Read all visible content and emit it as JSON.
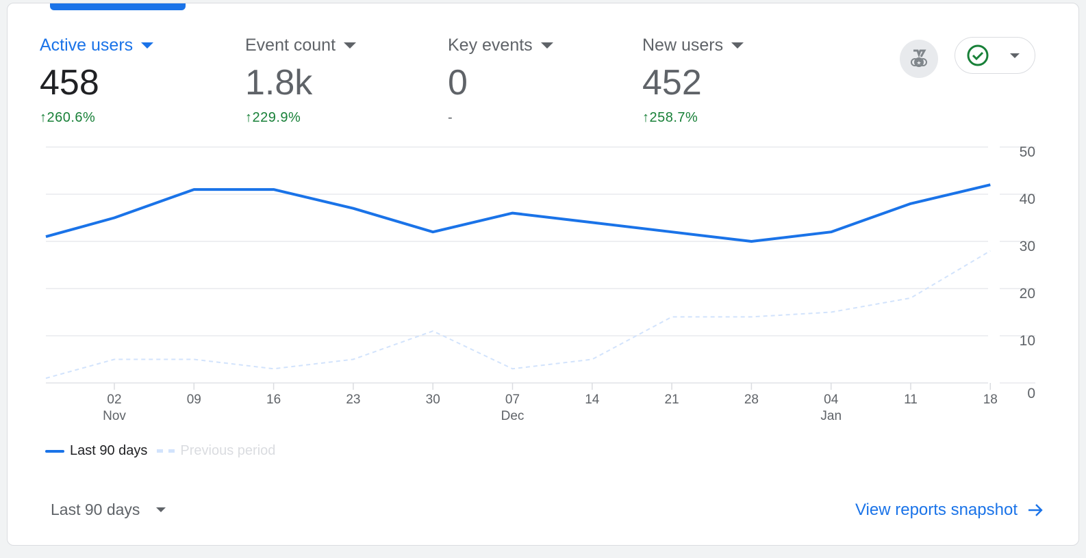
{
  "metrics": [
    {
      "label": "Active users",
      "value": "458",
      "change": "260.6%",
      "direction": "up"
    },
    {
      "label": "Event count",
      "value": "1.8k",
      "change": "229.9%",
      "direction": "up"
    },
    {
      "label": "Key events",
      "value": "0",
      "change": "-",
      "direction": "none"
    },
    {
      "label": "New users",
      "value": "452",
      "change": "258.7%",
      "direction": "up"
    }
  ],
  "icons": {
    "badge": "medal-icon",
    "status": "check-circle-icon"
  },
  "colors": {
    "accent": "#1a73e8",
    "positive": "#188038",
    "previous": "#d2e3fc"
  },
  "footer": {
    "range_label": "Last 90 days",
    "snapshot_link": "View reports snapshot"
  },
  "chart_data": {
    "type": "line",
    "title": "Active users",
    "x": [
      "",
      "02",
      "09",
      "16",
      "23",
      "30",
      "07",
      "14",
      "21",
      "28",
      "04",
      "11",
      "18"
    ],
    "x_month_labels": {
      "1": "Nov",
      "6": "Dec",
      "10": "Jan"
    },
    "y_ticks": [
      "0",
      "10",
      "20",
      "30",
      "40",
      "50"
    ],
    "ylim": [
      0,
      50
    ],
    "grid": true,
    "legend_position": "bottom-left",
    "series": [
      {
        "name": "Last 90 days",
        "style": "solid",
        "values": [
          31,
          35,
          41,
          41,
          37,
          32,
          36,
          34,
          32,
          30,
          32,
          38,
          42
        ]
      },
      {
        "name": "Previous period",
        "style": "dashed",
        "values": [
          1,
          5,
          5,
          3,
          5,
          11,
          3,
          5,
          14,
          14,
          15,
          18,
          28
        ]
      }
    ]
  }
}
